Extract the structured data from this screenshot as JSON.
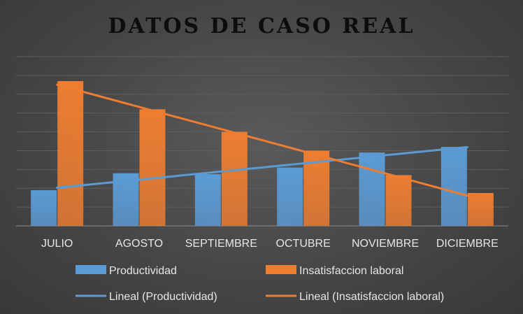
{
  "chart_data": {
    "type": "bar",
    "title": "DATOS DE CASO REAL",
    "categories": [
      "JULIO",
      "AGOSTO",
      "SEPTIEMBRE",
      "OCTUBRE",
      "NOVIEMBRE",
      "DICIEMBRE"
    ],
    "series": [
      {
        "name": "Productividad",
        "values": [
          1.9,
          2.8,
          2.75,
          3.1,
          3.9,
          4.2
        ],
        "color": "#5b9bd5"
      },
      {
        "name": "Insatisfaccion laboral",
        "values": [
          7.7,
          6.2,
          5.0,
          4.0,
          2.7,
          1.75
        ],
        "color": "#ed7d31"
      }
    ],
    "trendlines": [
      {
        "name": "Lineal (Productividad)",
        "series": "Productividad",
        "color": "#5b9bd5"
      },
      {
        "name": "Lineal (Insatisfaccion laboral)",
        "series": "Insatisfaccion laboral",
        "color": "#ed7d31"
      }
    ],
    "ylim": [
      0,
      9
    ],
    "y_gridlines": 9,
    "y_tick_labels_shown": false,
    "grid": true,
    "legend": "bottom"
  }
}
